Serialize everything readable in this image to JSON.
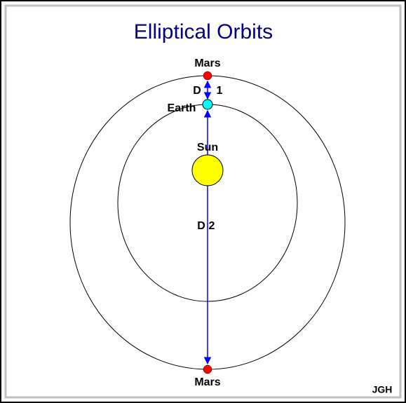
{
  "title": "Elliptical Orbits",
  "labels": {
    "mars_top": "Mars",
    "d1_letter": "D",
    "d1_number": "1",
    "earth": "Earth",
    "sun": "Sun",
    "d2_letter": "D",
    "d2_number": "2",
    "mars_bottom": "Mars"
  },
  "credit": "JGH"
}
